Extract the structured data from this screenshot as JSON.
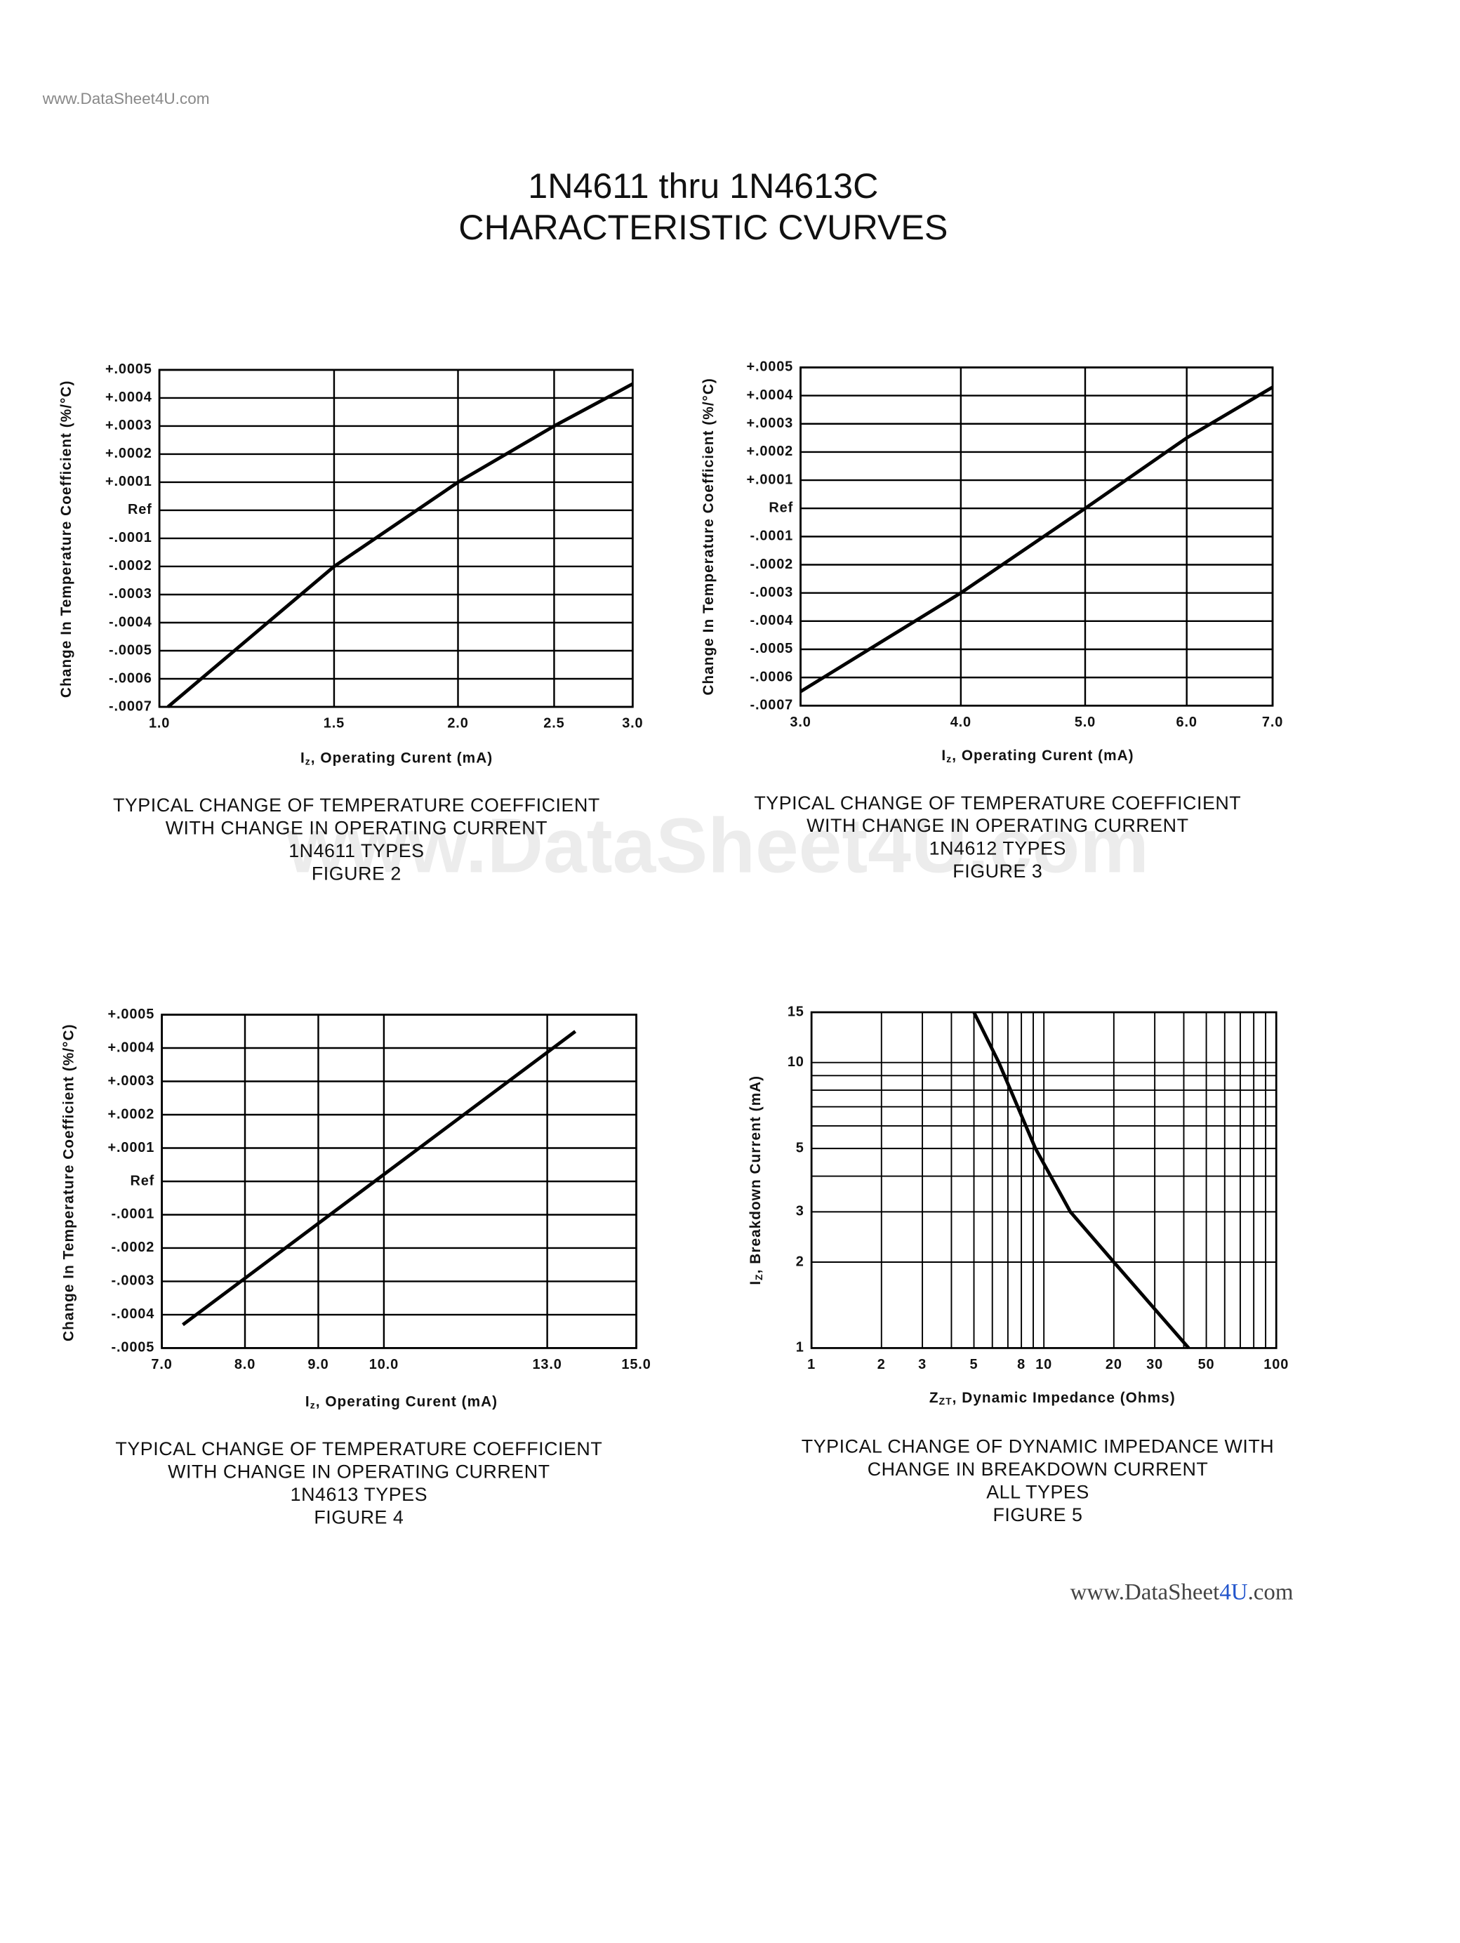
{
  "page": {
    "header": "www.DataSheet4U.com",
    "title": [
      "1N4611 thru 1N4613C",
      "CHARACTERISTIC CVURVES"
    ],
    "watermark": "www.DataSheet4U.com",
    "footer": [
      "www.DataSheet",
      "4U",
      ".com"
    ]
  },
  "chart_data": [
    {
      "type": "line",
      "xlabel": {
        "symbol": "I",
        "subscript": "z",
        "text": ", Operating Curent (mA)"
      },
      "ylabel": "Change In Temperature Coefficient (%/°C)",
      "caption": [
        "TYPICAL CHANGE OF TEMPERATURE COEFFICIENT",
        "WITH CHANGE IN OPERATING CURRENT",
        "1N4611 TYPES",
        "FIGURE 2"
      ],
      "xscale": "log",
      "xlim": [
        1.0,
        3.0
      ],
      "xticks": [
        {
          "value": 1.0,
          "label": "1.0"
        },
        1.5,
        {
          "value": 2.0,
          "label": "2.0"
        },
        2.5,
        {
          "value": 3.0,
          "label": "3.0"
        }
      ],
      "ylim": [
        -0.0007,
        0.0005
      ],
      "yticks": [
        {
          "value": 0.0005,
          "label": "+.0005"
        },
        {
          "value": 0.0004,
          "label": "+.0004"
        },
        {
          "value": 0.0003,
          "label": "+.0003"
        },
        {
          "value": 0.0002,
          "label": "+.0002"
        },
        {
          "value": 0.0001,
          "label": "+.0001"
        },
        {
          "value": 0,
          "label": "Ref"
        },
        {
          "value": -0.0001,
          "label": "-.0001"
        },
        {
          "value": -0.0002,
          "label": "-.0002"
        },
        {
          "value": -0.0003,
          "label": "-.0003"
        },
        {
          "value": -0.0004,
          "label": "-.0004"
        },
        {
          "value": -0.0005,
          "label": "-.0005"
        },
        {
          "value": -0.0006,
          "label": "-.0006"
        },
        {
          "value": -0.0007,
          "label": "-.0007"
        }
      ],
      "grid": true,
      "color": "#000000",
      "x": [
        1.02,
        1.5,
        2.0,
        2.5,
        3.0
      ],
      "values": [
        -0.0007,
        -0.0002,
        0.0001,
        0.0003,
        0.00045
      ]
    },
    {
      "type": "line",
      "xlabel": {
        "symbol": "I",
        "subscript": "z",
        "text": ", Operating Curent (mA)"
      },
      "ylabel": "Change In Temperature Coefficient (%/°C)",
      "caption": [
        "TYPICAL CHANGE OF TEMPERATURE COEFFICIENT",
        "WITH CHANGE IN OPERATING CURRENT",
        "1N4612 TYPES",
        "FIGURE 3"
      ],
      "xscale": "log",
      "xlim": [
        3.0,
        7.0
      ],
      "xticks": [
        {
          "value": 3.0,
          "label": "3.0"
        },
        {
          "value": 4.0,
          "label": "4.0"
        },
        {
          "value": 5.0,
          "label": "5.0"
        },
        {
          "value": 6.0,
          "label": "6.0"
        },
        {
          "value": 7.0,
          "label": "7.0"
        }
      ],
      "ylim": [
        -0.0007,
        0.0005
      ],
      "yticks": [
        {
          "value": 0.0005,
          "label": "+.0005"
        },
        {
          "value": 0.0004,
          "label": "+.0004"
        },
        {
          "value": 0.0003,
          "label": "+.0003"
        },
        {
          "value": 0.0002,
          "label": "+.0002"
        },
        {
          "value": 0.0001,
          "label": "+.0001"
        },
        {
          "value": 0,
          "label": "Ref"
        },
        {
          "value": -0.0001,
          "label": "-.0001"
        },
        {
          "value": -0.0002,
          "label": "-.0002"
        },
        {
          "value": -0.0003,
          "label": "-.0003"
        },
        {
          "value": -0.0004,
          "label": "-.0004"
        },
        {
          "value": -0.0005,
          "label": "-.0005"
        },
        {
          "value": -0.0006,
          "label": "-.0006"
        },
        {
          "value": -0.0007,
          "label": "-.0007"
        }
      ],
      "grid": true,
      "color": "#000000",
      "x": [
        3.0,
        4.0,
        5.0,
        6.0,
        7.0
      ],
      "values": [
        -0.00065,
        -0.0003,
        0,
        0.00025,
        0.00043
      ]
    },
    {
      "type": "line",
      "xlabel": {
        "symbol": "I",
        "subscript": "z",
        "text": ", Operating Curent (mA)"
      },
      "ylabel": "Change In Temperature Coefficient (%/°C)",
      "caption": [
        "TYPICAL CHANGE OF TEMPERATURE COEFFICIENT",
        "WITH CHANGE IN OPERATING CURRENT",
        "1N4613 TYPES",
        "FIGURE 4"
      ],
      "xscale": "log",
      "xlim": [
        7.0,
        15.0
      ],
      "xticks": [
        {
          "value": 7.0,
          "label": "7.0"
        },
        {
          "value": 8.0,
          "label": "8.0"
        },
        {
          "value": 9.0,
          "label": "9.0"
        },
        {
          "value": 10.0,
          "label": "10.0"
        },
        {
          "value": 13.0,
          "label": "13.0"
        },
        {
          "value": 15.0,
          "label": "15.0"
        }
      ],
      "ylim": [
        -0.0005,
        0.0005
      ],
      "yticks": [
        {
          "value": 0.0005,
          "label": "+.0005"
        },
        {
          "value": 0.0004,
          "label": "+.0004"
        },
        {
          "value": 0.0003,
          "label": "+.0003"
        },
        {
          "value": 0.0002,
          "label": "+.0002"
        },
        {
          "value": 0.0001,
          "label": "+.0001"
        },
        {
          "value": 0,
          "label": "Ref"
        },
        {
          "value": -0.0001,
          "label": "-.0001"
        },
        {
          "value": -0.0002,
          "label": "-.0002"
        },
        {
          "value": -0.0003,
          "label": "-.0003"
        },
        {
          "value": -0.0004,
          "label": "-.0004"
        },
        {
          "value": -0.0005,
          "label": "-.0005"
        }
      ],
      "grid": true,
      "color": "#000000",
      "x": [
        7.24,
        13.6
      ],
      "values": [
        -0.00043,
        0.00045
      ]
    },
    {
      "type": "line",
      "xlabel": {
        "symbol": "Z",
        "subscript": "ZT",
        "text": ", Dynamic Impedance (Ohms)"
      },
      "ylabel": {
        "symbol": "I",
        "subscript": "Z",
        "text": ", Breakdown Current (mA)"
      },
      "caption": [
        "TYPICAL CHANGE OF DYNAMIC IMPEDANCE WITH",
        "CHANGE IN BREAKDOWN CURRENT",
        "ALL TYPES",
        "FIGURE 5"
      ],
      "xscale": "log",
      "yscale": "log",
      "xlim": [
        1,
        100
      ],
      "xticks": [
        1,
        2,
        3,
        5,
        8,
        10,
        20,
        30,
        50,
        100
      ],
      "minor_xticks": [
        4,
        6,
        7,
        9,
        40,
        60,
        70,
        80,
        90
      ],
      "ylim": [
        1,
        15
      ],
      "yticks": [
        1,
        2,
        3,
        5,
        10,
        15
      ],
      "minor_yticks": [
        4,
        6,
        7,
        8,
        9
      ],
      "grid": true,
      "color": "#000000",
      "x": [
        5,
        6.4,
        9.2,
        13,
        20,
        42
      ],
      "values": [
        15,
        10,
        5,
        3,
        2,
        1
      ]
    }
  ]
}
